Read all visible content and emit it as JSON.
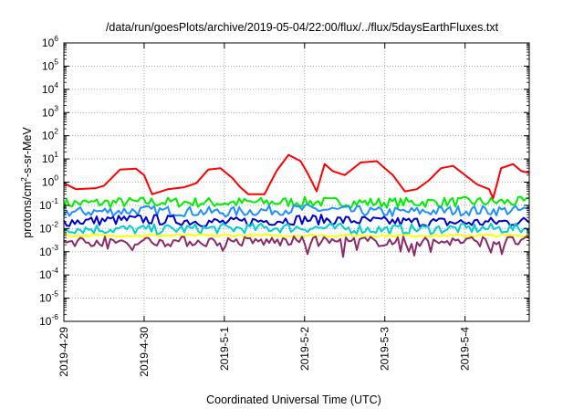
{
  "chart_data": {
    "type": "line",
    "title": "/data/run/goesPlots/archive/2019-05-04/22:00/flux/../flux/5daysEarthFluxes.txt",
    "xlabel": "Coordinated Universal Time (UTC)",
    "ylabel": {
      "prefix": "protons/cm",
      "sup": "2",
      "suffix": "-s-sr-MeV"
    },
    "y_scale": "log",
    "ylim_exponents": [
      -6,
      6
    ],
    "y_ticks": [
      {
        "base": "10",
        "exp": "6",
        "value": 1000000.0
      },
      {
        "base": "10",
        "exp": "5",
        "value": 100000.0
      },
      {
        "base": "10",
        "exp": "4",
        "value": 10000.0
      },
      {
        "base": "10",
        "exp": "3",
        "value": 1000.0
      },
      {
        "base": "10",
        "exp": "2",
        "value": 100.0
      },
      {
        "base": "10",
        "exp": "1",
        "value": 10.0
      },
      {
        "base": "10",
        "exp": "0",
        "value": 1
      },
      {
        "base": "10",
        "exp": "-1",
        "value": 0.1
      },
      {
        "base": "10",
        "exp": "-2",
        "value": 0.01
      },
      {
        "base": "10",
        "exp": "-3",
        "value": 0.001
      },
      {
        "base": "10",
        "exp": "-4",
        "value": 0.0001
      },
      {
        "base": "10",
        "exp": "-5",
        "value": 1e-05
      },
      {
        "base": "10",
        "exp": "-6",
        "value": 1e-06
      }
    ],
    "x_ticks": [
      "2019-4-29",
      "2019-4-30",
      "2019-5-1",
      "2019-5-2",
      "2019-5-3",
      "2019-5-4"
    ],
    "x_range_days": [
      0,
      5.8
    ],
    "grid": true,
    "series": [
      {
        "color": "#ff0000",
        "points": [
          [
            0,
            0.9
          ],
          [
            0.15,
            0.5
          ],
          [
            0.4,
            0.55
          ],
          [
            0.5,
            0.7
          ],
          [
            0.7,
            3.5
          ],
          [
            0.9,
            3.8
          ],
          [
            1.0,
            2.0
          ],
          [
            1.1,
            0.3
          ],
          [
            1.3,
            0.5
          ],
          [
            1.5,
            0.6
          ],
          [
            1.65,
            0.9
          ],
          [
            1.8,
            3.5
          ],
          [
            1.95,
            4.0
          ],
          [
            2.1,
            1.5
          ],
          [
            2.2,
            0.6
          ],
          [
            2.3,
            0.3
          ],
          [
            2.5,
            0.3
          ],
          [
            2.65,
            3.0
          ],
          [
            2.8,
            15.0
          ],
          [
            2.95,
            8.0
          ],
          [
            3.05,
            2.0
          ],
          [
            3.15,
            0.4
          ],
          [
            3.25,
            6.0
          ],
          [
            3.35,
            3.0
          ],
          [
            3.5,
            2.0
          ],
          [
            3.7,
            7.0
          ],
          [
            3.9,
            8.0
          ],
          [
            4.0,
            4.0
          ],
          [
            4.1,
            2.0
          ],
          [
            4.25,
            0.4
          ],
          [
            4.4,
            0.5
          ],
          [
            4.55,
            1.2
          ],
          [
            4.7,
            4.0
          ],
          [
            4.85,
            5.0
          ],
          [
            5.0,
            2.0
          ],
          [
            5.15,
            0.8
          ],
          [
            5.3,
            0.5
          ],
          [
            5.35,
            0.2
          ],
          [
            5.45,
            4.0
          ],
          [
            5.6,
            6.0
          ],
          [
            5.7,
            3.0
          ],
          [
            5.8,
            2.5
          ]
        ]
      },
      {
        "color": "#00ee00",
        "points": [
          [
            0,
            0.12
          ],
          [
            1,
            0.14
          ],
          [
            2,
            0.13
          ],
          [
            3,
            0.14
          ],
          [
            4,
            0.13
          ],
          [
            5,
            0.14
          ],
          [
            5.8,
            0.14
          ]
        ]
      },
      {
        "color": "#1e90ff",
        "points": [
          [
            0,
            0.05
          ],
          [
            1,
            0.06
          ],
          [
            2,
            0.05
          ],
          [
            3,
            0.07
          ],
          [
            4,
            0.05
          ],
          [
            5,
            0.06
          ],
          [
            5.8,
            0.06
          ]
        ]
      },
      {
        "color": "#0000cd",
        "points": [
          [
            0,
            0.02
          ],
          [
            1,
            0.025
          ],
          [
            2,
            0.018
          ],
          [
            3,
            0.025
          ],
          [
            4,
            0.02
          ],
          [
            5,
            0.018
          ],
          [
            5.8,
            0.02
          ]
        ]
      },
      {
        "color": "#00ced1",
        "points": [
          [
            0,
            0.01
          ],
          [
            1,
            0.009
          ],
          [
            2,
            0.01
          ],
          [
            3,
            0.011
          ],
          [
            4,
            0.009
          ],
          [
            5,
            0.01
          ],
          [
            5.8,
            0.01
          ]
        ]
      },
      {
        "color": "#ffff00",
        "points": [
          [
            0,
            0.005
          ],
          [
            1,
            0.005
          ],
          [
            2,
            0.005
          ],
          [
            3,
            0.005
          ],
          [
            4,
            0.005
          ],
          [
            5,
            0.005
          ],
          [
            5.8,
            0.005
          ]
        ]
      },
      {
        "color": "#8b2a6a",
        "points": [
          [
            0,
            0.0028
          ],
          [
            1,
            0.0028
          ],
          [
            2,
            0.0027
          ],
          [
            3,
            0.0028
          ],
          [
            4,
            0.0028
          ],
          [
            5,
            0.0028
          ],
          [
            5.8,
            0.0028
          ]
        ]
      }
    ]
  }
}
